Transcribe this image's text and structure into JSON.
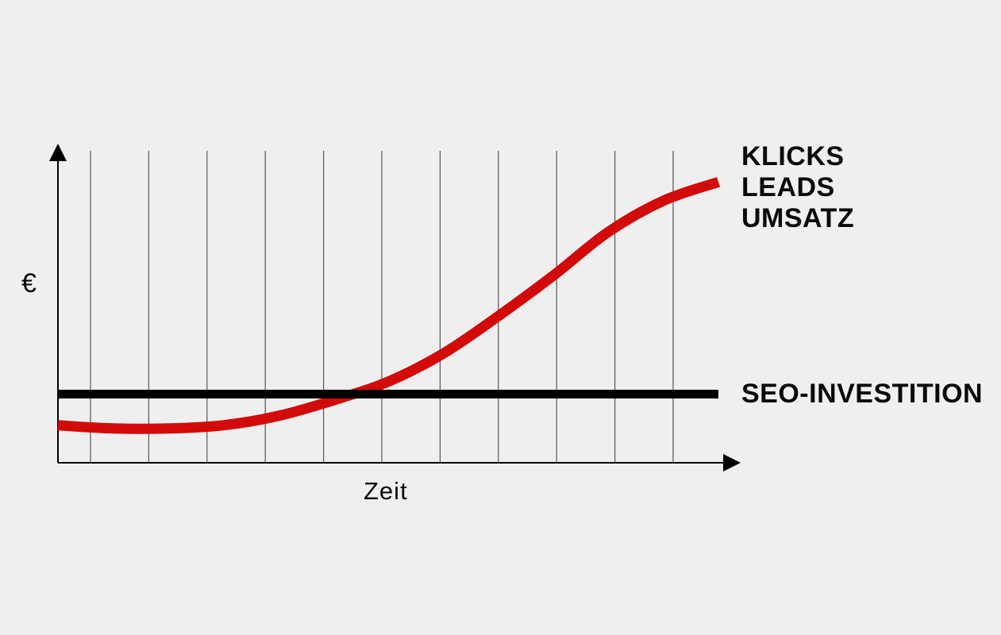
{
  "background_color": "#efefef",
  "labels": {
    "y_axis": "€",
    "x_axis": "Zeit",
    "curve_line1": "KLICKS",
    "curve_line2": "LEADS",
    "curve_line3": "UMSATZ",
    "investment": "SEO-INVESTITION"
  },
  "colors": {
    "background": "#efefef",
    "axis": "#000000",
    "gridline": "#555555",
    "text": "#0a0a0a",
    "growth_curve": "#d20a0a",
    "investment_line": "#000000"
  },
  "chart_data": {
    "type": "line",
    "title": "",
    "xlabel": "Zeit",
    "ylabel": "€",
    "x": [
      0,
      1,
      2,
      3,
      4,
      5,
      6,
      7,
      8,
      9,
      10,
      11,
      12
    ],
    "xlim": [
      0,
      12
    ],
    "ylim": [
      0,
      100
    ],
    "axis_tick_labels": "none",
    "grid": "vertical gridlines only",
    "gridline_count": 11,
    "legend_position": "labels right of plot",
    "series": [
      {
        "name": "KLICKS / LEADS / UMSATZ",
        "color": "#d20a0a",
        "stroke_width": 13,
        "shape": "s-curve rising",
        "values": [
          12,
          11,
          11,
          12,
          15,
          20,
          26,
          35,
          47,
          60,
          74,
          84,
          90
        ]
      },
      {
        "name": "SEO-INVESTITION",
        "color": "#000000",
        "stroke_width": 11,
        "shape": "constant horizontal",
        "values": [
          22,
          22,
          22,
          22,
          22,
          22,
          22,
          22,
          22,
          22,
          22,
          22,
          22
        ]
      }
    ]
  }
}
